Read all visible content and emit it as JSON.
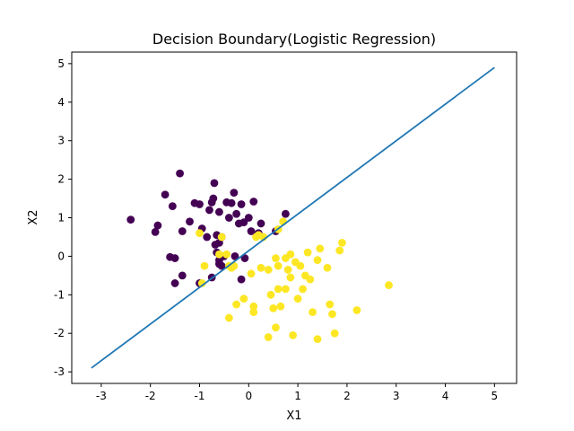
{
  "chart_data": {
    "type": "scatter",
    "title": "Decision Boundary(Logistic Regression)",
    "xlabel": "X1",
    "ylabel": "X2",
    "xlim": [
      -3.6,
      5.45
    ],
    "ylim": [
      -3.3,
      5.3
    ],
    "xticks": [
      "-3",
      "-2",
      "-1",
      "0",
      "1",
      "2",
      "3",
      "4",
      "5"
    ],
    "yticks": [
      "-3",
      "-2",
      "-1",
      "0",
      "1",
      "2",
      "3",
      "4",
      "5"
    ],
    "grid": false,
    "legend": "none",
    "series": [
      {
        "kind": "scatter",
        "color": "#440154",
        "points": [
          [
            -2.4,
            0.95
          ],
          [
            -1.85,
            0.8
          ],
          [
            -1.9,
            0.63
          ],
          [
            -1.7,
            1.6
          ],
          [
            -1.55,
            1.3
          ],
          [
            -1.4,
            2.15
          ],
          [
            -1.35,
            0.65
          ],
          [
            -1.2,
            0.9
          ],
          [
            -1.1,
            1.38
          ],
          [
            -1.0,
            1.35
          ],
          [
            -0.95,
            0.72
          ],
          [
            -0.85,
            0.5
          ],
          [
            -0.8,
            1.2
          ],
          [
            -0.75,
            1.4
          ],
          [
            -0.72,
            1.5
          ],
          [
            -0.7,
            1.9
          ],
          [
            -0.68,
            0.3
          ],
          [
            -0.65,
            0.55
          ],
          [
            -0.6,
            1.15
          ],
          [
            -0.55,
            0.5
          ],
          [
            -0.5,
            0.0
          ],
          [
            -0.45,
            1.4
          ],
          [
            -0.4,
            1.0
          ],
          [
            -0.35,
            1.38
          ],
          [
            -0.3,
            1.65
          ],
          [
            -0.28,
            0.0
          ],
          [
            -0.25,
            1.1
          ],
          [
            -0.2,
            0.85
          ],
          [
            -0.15,
            1.35
          ],
          [
            -0.1,
            0.88
          ],
          [
            -0.08,
            -0.05
          ],
          [
            0.0,
            1.0
          ],
          [
            0.1,
            1.42
          ],
          [
            0.05,
            0.65
          ],
          [
            0.2,
            0.6
          ],
          [
            0.25,
            0.85
          ],
          [
            -1.6,
            -0.02
          ],
          [
            -1.5,
            -0.05
          ],
          [
            -1.5,
            -0.7
          ],
          [
            -1.35,
            -0.5
          ],
          [
            -1.0,
            -0.7
          ],
          [
            -0.75,
            -0.55
          ],
          [
            -0.6,
            -0.2
          ],
          [
            -0.55,
            -0.25
          ],
          [
            -0.15,
            -0.6
          ],
          [
            -0.65,
            0.1
          ],
          [
            0.55,
            0.65
          ],
          [
            0.75,
            1.1
          ],
          [
            -0.6,
            -0.1
          ],
          [
            -0.6,
            0.35
          ]
        ]
      },
      {
        "kind": "scatter",
        "color": "#fde725",
        "points": [
          [
            -1.0,
            0.6
          ],
          [
            -0.9,
            -0.25
          ],
          [
            -0.95,
            -0.7
          ],
          [
            -0.6,
            0.05
          ],
          [
            -0.45,
            0.05
          ],
          [
            -0.35,
            -0.3
          ],
          [
            -0.3,
            -0.25
          ],
          [
            -0.25,
            -1.25
          ],
          [
            -0.4,
            -1.6
          ],
          [
            -0.1,
            -1.1
          ],
          [
            0.05,
            -0.45
          ],
          [
            0.1,
            -1.3
          ],
          [
            0.1,
            -1.45
          ],
          [
            0.2,
            0.55
          ],
          [
            0.25,
            -0.3
          ],
          [
            0.4,
            -0.35
          ],
          [
            0.45,
            -1.0
          ],
          [
            0.5,
            -1.35
          ],
          [
            0.55,
            -1.85
          ],
          [
            0.55,
            -0.05
          ],
          [
            0.6,
            -0.25
          ],
          [
            0.6,
            -0.85
          ],
          [
            0.65,
            -1.3
          ],
          [
            0.7,
            0.9
          ],
          [
            0.75,
            -0.05
          ],
          [
            0.75,
            -0.85
          ],
          [
            0.8,
            -0.35
          ],
          [
            0.85,
            0.05
          ],
          [
            0.85,
            -0.55
          ],
          [
            0.9,
            -2.05
          ],
          [
            0.95,
            -0.15
          ],
          [
            1.0,
            -1.1
          ],
          [
            1.05,
            -0.25
          ],
          [
            1.1,
            -0.85
          ],
          [
            1.15,
            -0.5
          ],
          [
            1.2,
            0.1
          ],
          [
            1.25,
            -0.6
          ],
          [
            1.3,
            -1.45
          ],
          [
            1.4,
            -0.1
          ],
          [
            1.45,
            0.2
          ],
          [
            1.6,
            -0.3
          ],
          [
            1.65,
            -1.25
          ],
          [
            1.7,
            -1.5
          ],
          [
            1.75,
            -2.0
          ],
          [
            1.85,
            0.15
          ],
          [
            1.9,
            0.35
          ],
          [
            2.2,
            -1.4
          ],
          [
            2.85,
            -0.75
          ],
          [
            0.4,
            -2.1
          ],
          [
            1.4,
            -2.15
          ],
          [
            -0.4,
            -0.25
          ],
          [
            0.3,
            0.5
          ],
          [
            0.15,
            0.5
          ],
          [
            -0.55,
            0.5
          ],
          [
            0.6,
            0.7
          ]
        ]
      },
      {
        "kind": "line",
        "color": "#1f77b4",
        "x": [
          -3.2,
          5.0
        ],
        "y": [
          -2.9,
          4.9
        ]
      }
    ]
  }
}
